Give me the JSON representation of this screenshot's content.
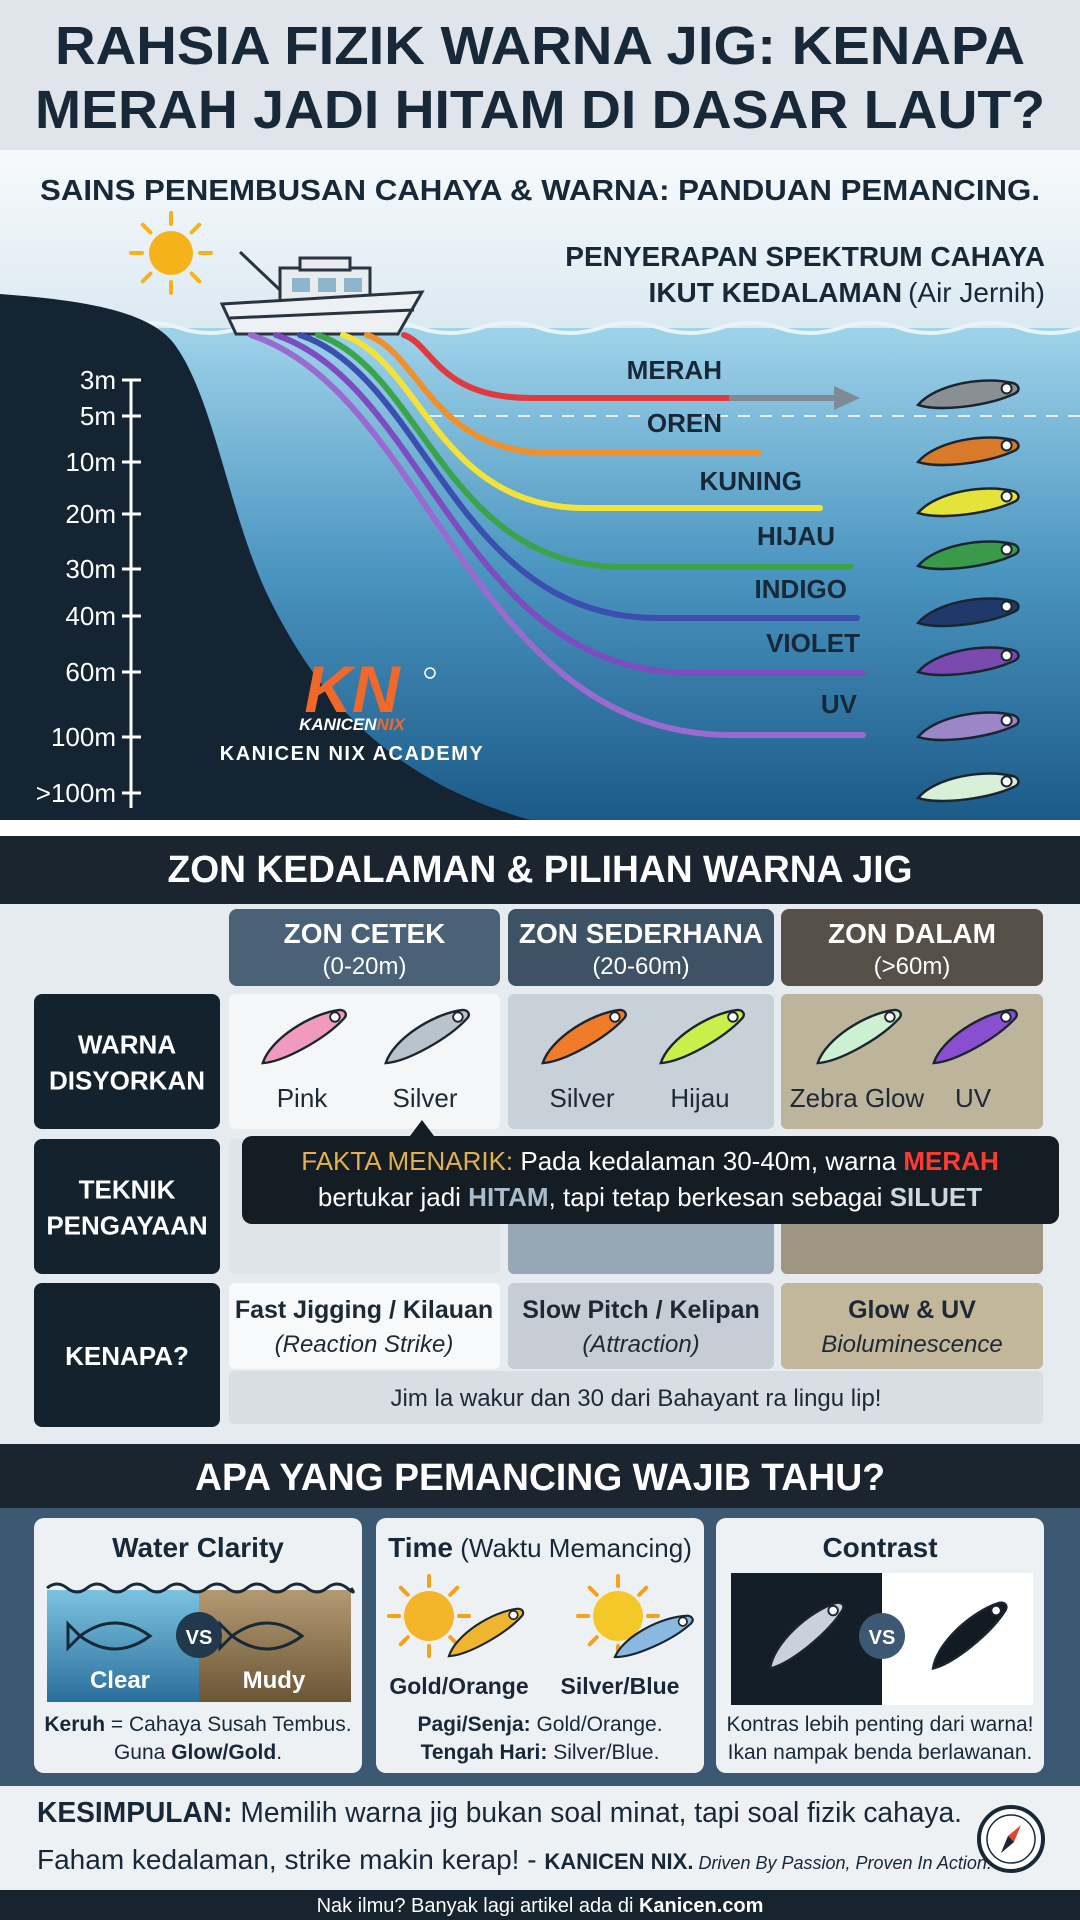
{
  "header": {
    "title_lines": [
      "RAHSIA FIZIK WARNA JIG: KENAPA",
      "MERAH JADI HITAM DI DASAR LAUT?"
    ],
    "subtitle": "SAINS PENEMBUSAN CAHAYA & WARNA: PANDUAN PEMANCING."
  },
  "diagram": {
    "spectrum_title": "PENYERAPAN SPEKTRUM CAHAYA",
    "spectrum_title_2": "IKUT KEDALAMAN",
    "spectrum_note": "(Air Jernih)",
    "depths": [
      "3m",
      "5m",
      "10m",
      "20m",
      "30m",
      "40m",
      "60m",
      "100m",
      ">100m"
    ],
    "colors": [
      "MERAH",
      "OREN",
      "KUNING",
      "HIJAU",
      "INDIGO",
      "VIOLET",
      "UV"
    ],
    "logo_mark": "KN",
    "logo_name_1": "KANICEN",
    "logo_name_2": "NIX",
    "academy": "KANICEN NIX ACADEMY"
  },
  "zones": {
    "title": "ZON KEDALAMAN & PILIHAN WARNA JIG",
    "columns": [
      {
        "name": "ZON CETEK",
        "range": "(0-20m)"
      },
      {
        "name": "ZON SEDERHANA",
        "range": "(20-60m)"
      },
      {
        "name": "ZON DALAM",
        "range": "(>60m)"
      }
    ],
    "row_labels": [
      [
        "WARNA",
        "DISYORKAN"
      ],
      [
        "TEKNIK",
        "PENGAYAAN"
      ],
      [
        "KENAPA?"
      ]
    ],
    "recommended": [
      [
        "Pink",
        "Silver"
      ],
      [
        "Silver",
        "Hijau"
      ],
      [
        "Zebra Glow",
        "UV"
      ]
    ],
    "reasons": [
      {
        "main": "Fast Jigging / Kilauan",
        "sub": "(Reaction Strike)"
      },
      {
        "main": "Slow Pitch / Kelipan",
        "sub": "(Attraction)"
      },
      {
        "main": "Glow & UV",
        "sub": "Bioluminescence"
      }
    ],
    "note": "Jim la wakur dan 30 dari Bahayant ra lingu lip!",
    "fact": {
      "label": "FAKTA MENARIK:",
      "line1": [
        " Pada kedalaman 30-40m, warna ",
        "MERAH"
      ],
      "line2": [
        "bertukar jadi ",
        "HITAM",
        ", tapi tetap berkesan sebagai ",
        "SILUET"
      ]
    }
  },
  "tips": {
    "title": "APA YANG PEMANCING WAJIB TAHU?",
    "vs": "VS",
    "clarity": {
      "title": "Water Clarity",
      "labels": [
        "Clear",
        "Mudy"
      ],
      "note1": [
        "Keruh",
        " = Cahaya Susah Tembus."
      ],
      "note2": [
        "Guna ",
        "Glow/Gold",
        "."
      ]
    },
    "time": {
      "title": "Time",
      "title_note": " (Waktu Memancing)",
      "labels": [
        "Gold/Orange",
        "Silver/Blue"
      ],
      "note1": [
        "Pagi/Senja:",
        " Gold/Orange."
      ],
      "note2": [
        "Tengah Hari:",
        " Silver/Blue."
      ]
    },
    "contrast": {
      "title": "Contrast",
      "notes": [
        "Kontras lebih penting dari warna!",
        "Ikan nampak benda berlawanan."
      ]
    }
  },
  "conclusion": {
    "label": "KESIMPULAN:",
    "line1": " Memilih warna jig bukan soal minat, tapi soal fizik cahaya.",
    "line2": "Faham kedalaman, strike makin kerap! - ",
    "brand": "KANICEN NIX.",
    "tagline": " Driven By Passion, Proven In Action."
  },
  "footer": {
    "text": "Nak ilmu? Banyak lagi artikel ada di ",
    "link": "Kanicen.com"
  }
}
